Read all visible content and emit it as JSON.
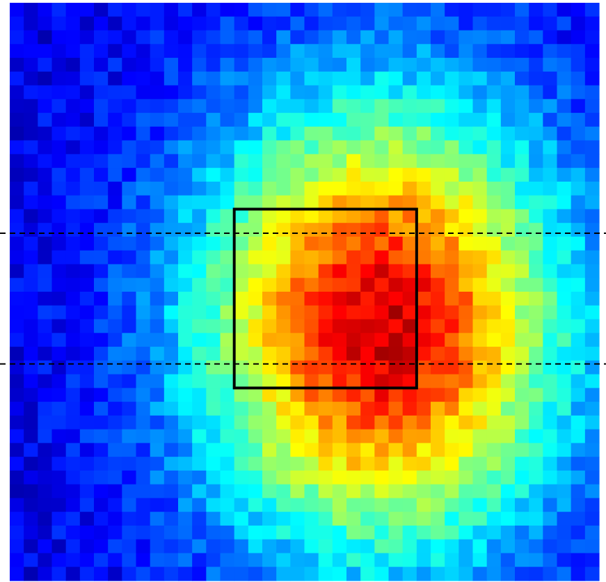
{
  "chart_data": {
    "type": "heatmap",
    "title": "",
    "xlabel": "",
    "ylabel": "",
    "grid": false,
    "colormap": "jet",
    "colors": {
      "background": "#ffffff",
      "box_outline": "#000000",
      "guide_lines": "#000000"
    },
    "value_range": [
      0,
      1
    ],
    "grid_size": {
      "cols": 42,
      "rows": 42
    },
    "peak": {
      "col": 26.5,
      "row": 23.5,
      "amplitude": 0.82
    },
    "spread": {
      "sigma_x": 9.2,
      "sigma_y": 11.5
    },
    "background_level": 0.1,
    "noise": 0.06,
    "region_box": {
      "col_start": 16,
      "col_end": 29,
      "row_start": 15,
      "row_end": 28
    },
    "guide_lines": [
      {
        "orientation": "horizontal",
        "row": 16.75,
        "style": "dashed"
      },
      {
        "orientation": "horizontal",
        "row": 26.25,
        "style": "dashed"
      }
    ]
  }
}
